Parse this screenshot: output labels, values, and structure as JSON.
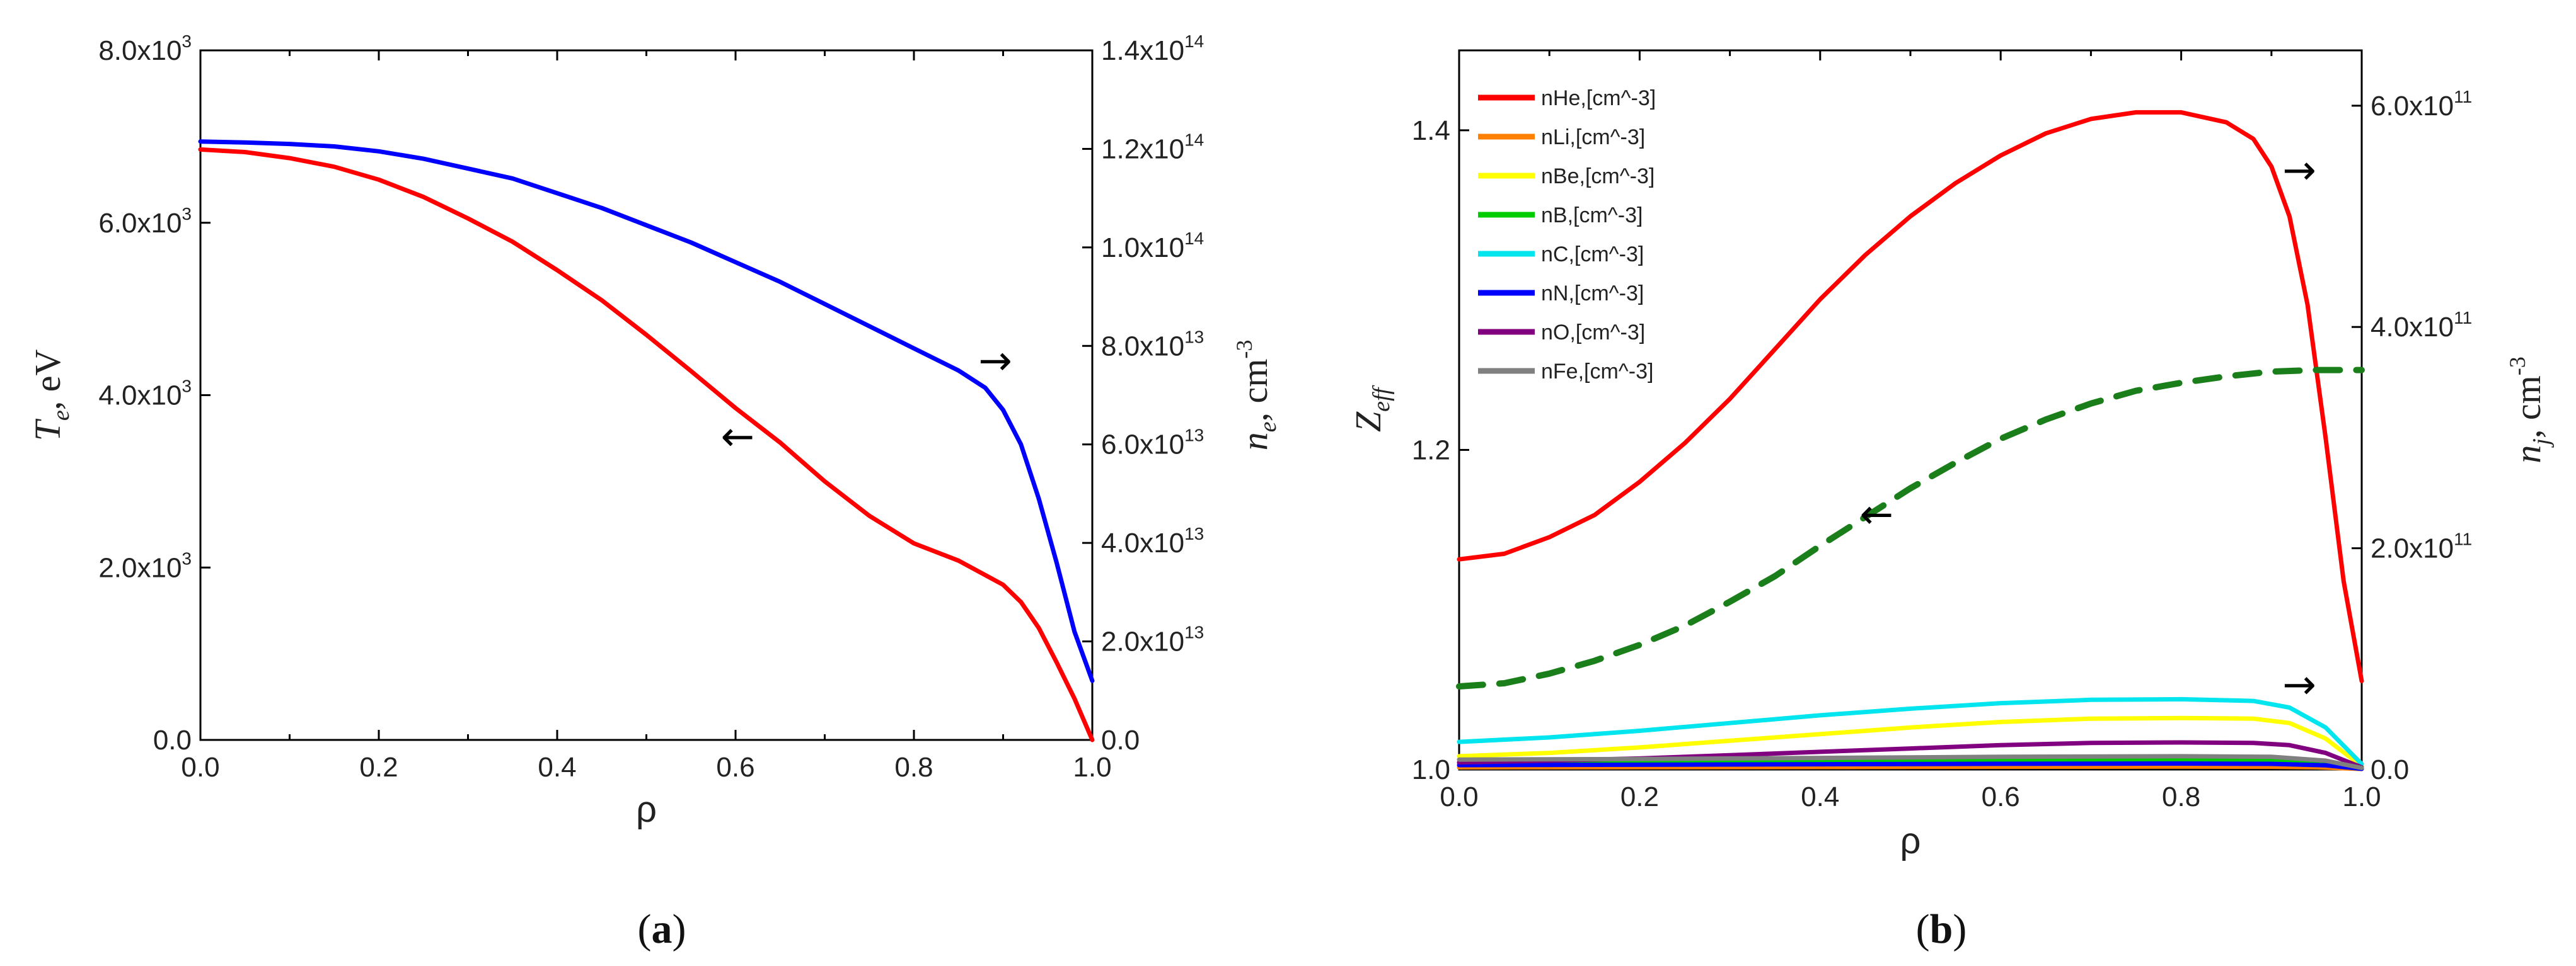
{
  "chart_data": [
    {
      "type": "line",
      "panel_label": "a",
      "xlabel": "ρ",
      "x_ticks": [
        "0.0",
        "0.2",
        "0.4",
        "0.6",
        "0.8",
        "1.0"
      ],
      "xlim": [
        0,
        1
      ],
      "y_left": {
        "label_main": "T",
        "label_sub": "e",
        "label_rest": ", eV",
        "lim": [
          0,
          8000
        ],
        "ticks": [
          {
            "v": 0,
            "m": "0.0",
            "e": ""
          },
          {
            "v": 2000,
            "m": "2.0x10",
            "e": "3"
          },
          {
            "v": 4000,
            "m": "4.0x10",
            "e": "3"
          },
          {
            "v": 6000,
            "m": "6.0x10",
            "e": "3"
          },
          {
            "v": 8000,
            "m": "8.0x10",
            "e": "3"
          }
        ]
      },
      "y_right": {
        "label_main": "n",
        "label_sub": "e",
        "label_rest": ", cm",
        "label_sup": "-3",
        "lim": [
          0,
          140000000000000.0
        ],
        "ticks": [
          {
            "v": 0,
            "m": "0.0",
            "e": ""
          },
          {
            "v": 20000000000000.0,
            "m": "2.0x10",
            "e": "13"
          },
          {
            "v": 40000000000000.0,
            "m": "4.0x10",
            "e": "13"
          },
          {
            "v": 60000000000000.0,
            "m": "6.0x10",
            "e": "13"
          },
          {
            "v": 80000000000000.0,
            "m": "8.0x10",
            "e": "13"
          },
          {
            "v": 100000000000000.0,
            "m": "1.0x10",
            "e": "14"
          },
          {
            "v": 120000000000000.0,
            "m": "1.2x10",
            "e": "14"
          },
          {
            "v": 140000000000000.0,
            "m": "1.4x10",
            "e": "14"
          }
        ]
      },
      "series": [
        {
          "name": "Te",
          "axis": "left",
          "color": "#ff0000",
          "x": [
            0,
            0.05,
            0.1,
            0.15,
            0.2,
            0.25,
            0.3,
            0.35,
            0.4,
            0.45,
            0.5,
            0.55,
            0.6,
            0.65,
            0.7,
            0.75,
            0.8,
            0.85,
            0.9,
            0.92,
            0.94,
            0.96,
            0.98,
            1.0
          ],
          "y": [
            6850,
            6820,
            6750,
            6650,
            6500,
            6300,
            6050,
            5780,
            5450,
            5100,
            4700,
            4280,
            3850,
            3450,
            3000,
            2600,
            2280,
            2080,
            1800,
            1600,
            1300,
            900,
            480,
            0
          ]
        },
        {
          "name": "ne",
          "axis": "right",
          "color": "#0000ff",
          "x": [
            0,
            0.05,
            0.1,
            0.15,
            0.2,
            0.25,
            0.3,
            0.35,
            0.4,
            0.45,
            0.5,
            0.55,
            0.6,
            0.65,
            0.7,
            0.75,
            0.8,
            0.85,
            0.88,
            0.9,
            0.92,
            0.94,
            0.96,
            0.98,
            1.0
          ],
          "y": [
            121500000000000.0,
            121300000000000.0,
            121000000000000.0,
            120500000000000.0,
            119500000000000.0,
            118000000000000.0,
            116000000000000.0,
            114000000000000.0,
            111000000000000.0,
            108000000000000.0,
            104500000000000.0,
            101000000000000.0,
            97000000000000.0,
            93000000000000.0,
            88500000000000.0,
            84000000000000.0,
            79500000000000.0,
            75000000000000.0,
            71500000000000.0,
            67000000000000.0,
            60000000000000.0,
            49000000000000.0,
            36000000000000.0,
            22000000000000.0,
            12000000000000.0
          ]
        }
      ],
      "annotations": [
        {
          "text": "←",
          "series": "Te",
          "at_x": 0.62,
          "direction": "left"
        },
        {
          "text": "→",
          "series": "ne",
          "at_x": 0.87,
          "direction": "right"
        }
      ]
    },
    {
      "type": "line",
      "panel_label": "b",
      "xlabel": "ρ",
      "x_ticks": [
        "0.0",
        "0.2",
        "0.4",
        "0.6",
        "0.8",
        "1.0"
      ],
      "xlim": [
        0,
        1
      ],
      "y_left": {
        "label_main": "Z",
        "label_sub": "eff",
        "lim": [
          1.0,
          1.45
        ],
        "ticks": [
          {
            "v": 1.0,
            "m": "1.0",
            "e": ""
          },
          {
            "v": 1.2,
            "m": "1.2",
            "e": ""
          },
          {
            "v": 1.4,
            "m": "1.4",
            "e": ""
          }
        ]
      },
      "y_right": {
        "label_main": "n",
        "label_sub": "j",
        "label_rest": ", cm",
        "label_sup": "-3",
        "lim": [
          0,
          650000000000.0
        ],
        "ticks": [
          {
            "v": 0,
            "m": "0.0",
            "e": ""
          },
          {
            "v": 200000000000.0,
            "m": "2.0x10",
            "e": "11"
          },
          {
            "v": 400000000000.0,
            "m": "4.0x10",
            "e": "11"
          },
          {
            "v": 600000000000.0,
            "m": "6.0x10",
            "e": "11"
          }
        ]
      },
      "legend": {
        "placement": "top-left"
      },
      "series": [
        {
          "name": "nHe,[cm^-3]",
          "axis": "right",
          "color": "#ff0000",
          "legend": true,
          "x": [
            0,
            0.05,
            0.1,
            0.15,
            0.2,
            0.25,
            0.3,
            0.35,
            0.4,
            0.45,
            0.5,
            0.55,
            0.6,
            0.65,
            0.7,
            0.75,
            0.8,
            0.85,
            0.88,
            0.9,
            0.92,
            0.94,
            0.96,
            0.98,
            1.0
          ],
          "y": [
            190000000000.0,
            195000000000.0,
            210000000000.0,
            230000000000.0,
            260000000000.0,
            295000000000.0,
            335000000000.0,
            380000000000.0,
            425000000000.0,
            465000000000.0,
            500000000000.0,
            530000000000.0,
            555000000000.0,
            575000000000.0,
            588000000000.0,
            594000000000.0,
            594000000000.0,
            585000000000.0,
            570000000000.0,
            545000000000.0,
            500000000000.0,
            420000000000.0,
            300000000000.0,
            170000000000.0,
            80000000000.0
          ]
        },
        {
          "name": "nLi,[cm^-3]",
          "axis": "right",
          "color": "#ff8000",
          "legend": true,
          "x": [
            0,
            0.2,
            0.4,
            0.6,
            0.8,
            0.9,
            0.95,
            1.0
          ],
          "y": [
            2000000000.0,
            2100000000.0,
            2300000000.0,
            2500000000.0,
            2600000000.0,
            2500000000.0,
            2000000000.0,
            500000000.0
          ]
        },
        {
          "name": "nBe,[cm^-3]",
          "axis": "right",
          "color": "#ffff00",
          "legend": true,
          "x": [
            0,
            0.1,
            0.2,
            0.3,
            0.4,
            0.5,
            0.6,
            0.7,
            0.8,
            0.88,
            0.92,
            0.96,
            1.0
          ],
          "y": [
            12000000000.0,
            15000000000.0,
            20000000000.0,
            26000000000.0,
            32000000000.0,
            38000000000.0,
            43000000000.0,
            46000000000.0,
            46500000000.0,
            46000000000.0,
            42000000000.0,
            28000000000.0,
            3000000000.0
          ]
        },
        {
          "name": "nB,[cm^-3]",
          "axis": "right",
          "color": "#00cc00",
          "legend": true,
          "x": [
            0,
            0.2,
            0.4,
            0.6,
            0.8,
            0.9,
            0.96,
            1.0
          ],
          "y": [
            6000000000.0,
            6500000000.0,
            7500000000.0,
            8500000000.0,
            9000000000.0,
            8500000000.0,
            6000000000.0,
            1000000000.0
          ]
        },
        {
          "name": "nC,[cm^-3]",
          "axis": "right",
          "color": "#00e5ee",
          "legend": true,
          "x": [
            0,
            0.1,
            0.2,
            0.3,
            0.4,
            0.5,
            0.6,
            0.7,
            0.8,
            0.88,
            0.92,
            0.96,
            1.0
          ],
          "y": [
            25000000000.0,
            29000000000.0,
            35000000000.0,
            42000000000.0,
            49000000000.0,
            55000000000.0,
            60000000000.0,
            63000000000.0,
            63500000000.0,
            62000000000.0,
            56000000000.0,
            38000000000.0,
            5000000000.0
          ]
        },
        {
          "name": "nN,[cm^-3]",
          "axis": "right",
          "color": "#0000ff",
          "legend": true,
          "x": [
            0,
            0.2,
            0.4,
            0.6,
            0.8,
            0.9,
            0.96,
            1.0
          ],
          "y": [
            4000000000.0,
            4300000000.0,
            4800000000.0,
            5200000000.0,
            5400000000.0,
            5100000000.0,
            3800000000.0,
            600000000.0
          ]
        },
        {
          "name": "nO,[cm^-3]",
          "axis": "right",
          "color": "#800080",
          "legend": true,
          "x": [
            0,
            0.1,
            0.2,
            0.3,
            0.4,
            0.5,
            0.6,
            0.7,
            0.8,
            0.88,
            0.92,
            0.96,
            1.0
          ],
          "y": [
            6500000000.0,
            8000000000.0,
            10000000000.0,
            13000000000.0,
            16000000000.0,
            19000000000.0,
            22000000000.0,
            24000000000.0,
            24500000000.0,
            24000000000.0,
            22000000000.0,
            15000000000.0,
            2000000000.0
          ]
        },
        {
          "name": "nFe,[cm^-3]",
          "axis": "right",
          "color": "#808080",
          "legend": true,
          "x": [
            0,
            0.2,
            0.4,
            0.6,
            0.8,
            0.9,
            0.96,
            1.0
          ],
          "y": [
            9000000000.0,
            9500000000.0,
            10500000000.0,
            11500000000.0,
            12000000000.0,
            11500000000.0,
            8000000000.0,
            1500000000.0
          ]
        },
        {
          "name": "Zeff",
          "axis": "left",
          "color": "#1a7f1a",
          "dashed": true,
          "legend": false,
          "x": [
            0,
            0.05,
            0.1,
            0.15,
            0.2,
            0.25,
            0.3,
            0.35,
            0.4,
            0.45,
            0.5,
            0.55,
            0.6,
            0.65,
            0.7,
            0.75,
            0.8,
            0.85,
            0.9,
            0.95,
            1.0
          ],
          "y": [
            1.052,
            1.054,
            1.06,
            1.068,
            1.078,
            1.09,
            1.105,
            1.121,
            1.14,
            1.158,
            1.176,
            1.192,
            1.207,
            1.219,
            1.229,
            1.237,
            1.242,
            1.246,
            1.249,
            1.25,
            1.25
          ]
        }
      ],
      "annotations": [
        {
          "text": "←",
          "series": "Zeff",
          "at_x": 0.48,
          "direction": "left"
        },
        {
          "text": "→",
          "series": "nHe,[cm^-3]",
          "at_x": 0.91,
          "direction": "right"
        },
        {
          "text": "→",
          "series": "nC,[cm^-3]",
          "at_x": 0.91,
          "direction": "right"
        }
      ]
    }
  ]
}
